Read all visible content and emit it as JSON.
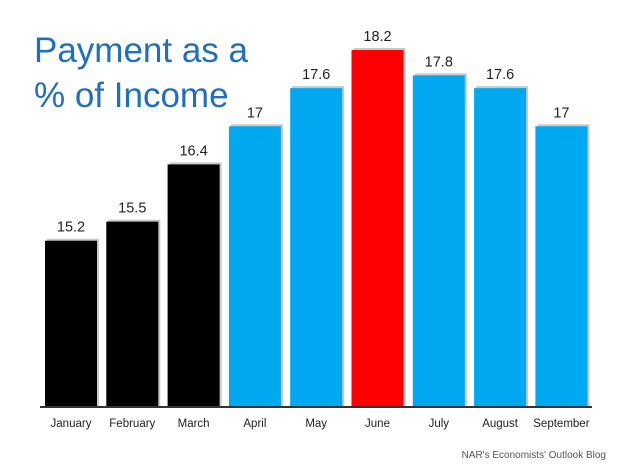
{
  "chart_data": {
    "type": "bar",
    "title_lines": [
      "Payment as a",
      "% of Income"
    ],
    "categories": [
      "January",
      "February",
      "March",
      "April",
      "May",
      "June",
      "July",
      "August",
      "September"
    ],
    "values": [
      15.2,
      15.5,
      16.4,
      17,
      17.6,
      18.2,
      17.8,
      17.6,
      17
    ],
    "value_labels": [
      "15.2",
      "15.5",
      "16.4",
      "17",
      "17.6",
      "18.2",
      "17.8",
      "17.6",
      "17"
    ],
    "bar_colors": [
      "#000000",
      "#000000",
      "#000000",
      "#00a8f0",
      "#00a8f0",
      "#ff0000",
      "#00a8f0",
      "#00a8f0",
      "#00a8f0"
    ],
    "ylim": [
      12.6,
      18.2
    ],
    "grid": false,
    "legend": "none"
  },
  "colors": {
    "title": "#1e6fc0",
    "axis": "#333333"
  },
  "source": "NAR's Economists' Outlook Blog"
}
